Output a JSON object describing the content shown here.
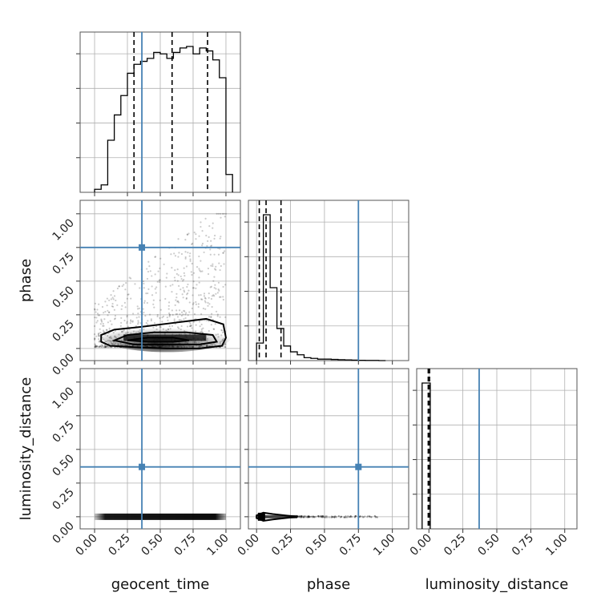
{
  "chart_data": {
    "type": "corner",
    "parameters": [
      "geocent_time",
      "phase",
      "luminosity_distance"
    ],
    "axis_labels": {
      "x": [
        "geocent_time",
        "phase",
        "luminosity_distance"
      ],
      "y": [
        "",
        "phase",
        "luminosity_distance"
      ]
    },
    "tick_labels": [
      "0.00",
      "0.25",
      "0.50",
      "0.75",
      "1.00"
    ],
    "truths": {
      "geocent_time": 0.36,
      "phase": 0.75,
      "luminosity_distance": 0.37
    },
    "colors": {
      "truth": "#4682b4",
      "hist": "#000000",
      "grid": "#b0b0b0"
    },
    "marginals": [
      {
        "param": "geocent_time",
        "range": [
          -0.11,
          1.11
        ],
        "bin_edges": [
          0.0,
          0.05,
          0.1,
          0.15,
          0.2,
          0.25,
          0.3,
          0.35,
          0.4,
          0.45,
          0.5,
          0.55,
          0.6,
          0.65,
          0.7,
          0.75,
          0.8,
          0.85,
          0.9,
          0.95,
          1.0,
          1.05
        ],
        "counts": [
          0.02,
          0.05,
          0.35,
          0.52,
          0.65,
          0.8,
          0.86,
          0.88,
          0.9,
          0.94,
          0.93,
          0.9,
          0.94,
          0.97,
          0.98,
          0.93,
          0.97,
          0.95,
          0.89,
          0.77,
          0.12
        ],
        "quantiles": [
          0.3,
          0.59,
          0.86
        ]
      },
      {
        "param": "phase",
        "range": [
          -0.06,
          1.12
        ],
        "bin_edges": [
          0.0,
          0.05,
          0.1,
          0.15,
          0.2,
          0.25,
          0.3,
          0.35,
          0.4,
          0.45,
          0.5,
          0.55,
          0.6,
          0.65,
          0.7,
          0.75,
          0.8,
          0.85,
          0.9,
          0.95
        ],
        "counts": [
          0.12,
          1.0,
          0.5,
          0.22,
          0.1,
          0.06,
          0.04,
          0.02,
          0.015,
          0.01,
          0.01,
          0.008,
          0.006,
          0.005,
          0.003,
          0.002,
          0.001,
          0.001,
          0.0
        ],
        "quantiles": [
          0.02,
          0.07,
          0.18
        ]
      },
      {
        "param": "luminosity_distance",
        "range": [
          -0.09,
          1.09
        ],
        "bin_edges": [
          -0.05,
          0.0,
          0.01
        ],
        "counts": [
          1.0,
          1.0
        ],
        "quantiles": [
          -0.005,
          0.005
        ]
      }
    ],
    "joints": [
      {
        "x": "geocent_time",
        "y": "phase",
        "xrange": [
          -0.11,
          1.11
        ],
        "yrange": [
          -0.09,
          1.1
        ],
        "contours": [
          [
            [
              0.05,
              0.05
            ],
            [
              0.12,
              0.02
            ],
            [
              0.3,
              0.01
            ],
            [
              0.55,
              0.0
            ],
            [
              0.8,
              0.0
            ],
            [
              0.97,
              0.02
            ],
            [
              1.0,
              0.08
            ],
            [
              0.98,
              0.18
            ],
            [
              0.85,
              0.22
            ],
            [
              0.6,
              0.19
            ],
            [
              0.35,
              0.16
            ],
            [
              0.15,
              0.14
            ],
            [
              0.05,
              0.1
            ]
          ],
          [
            [
              0.15,
              0.06
            ],
            [
              0.3,
              0.03
            ],
            [
              0.55,
              0.03
            ],
            [
              0.8,
              0.03
            ],
            [
              0.93,
              0.05
            ],
            [
              0.9,
              0.1
            ],
            [
              0.7,
              0.12
            ],
            [
              0.45,
              0.12
            ],
            [
              0.25,
              0.1
            ]
          ],
          [
            [
              0.25,
              0.06
            ],
            [
              0.4,
              0.05
            ],
            [
              0.6,
              0.05
            ],
            [
              0.72,
              0.06
            ],
            [
              0.6,
              0.08
            ],
            [
              0.4,
              0.08
            ]
          ]
        ]
      },
      {
        "x": "geocent_time",
        "y": "luminosity_distance",
        "xrange": [
          -0.11,
          1.11
        ],
        "yrange": [
          -0.09,
          1.1
        ],
        "band": {
          "y": 0.0,
          "x_from": 0.0,
          "x_to": 1.0
        }
      },
      {
        "x": "phase",
        "y": "luminosity_distance",
        "xrange": [
          -0.06,
          1.12
        ],
        "yrange": [
          -0.09,
          1.1
        ],
        "contours": [
          [
            [
              0.0,
              -0.01
            ],
            [
              0.05,
              -0.03
            ],
            [
              0.12,
              -0.02
            ],
            [
              0.3,
              0.0
            ],
            [
              0.12,
              0.02
            ],
            [
              0.05,
              0.03
            ],
            [
              0.0,
              0.01
            ]
          ]
        ]
      }
    ]
  }
}
